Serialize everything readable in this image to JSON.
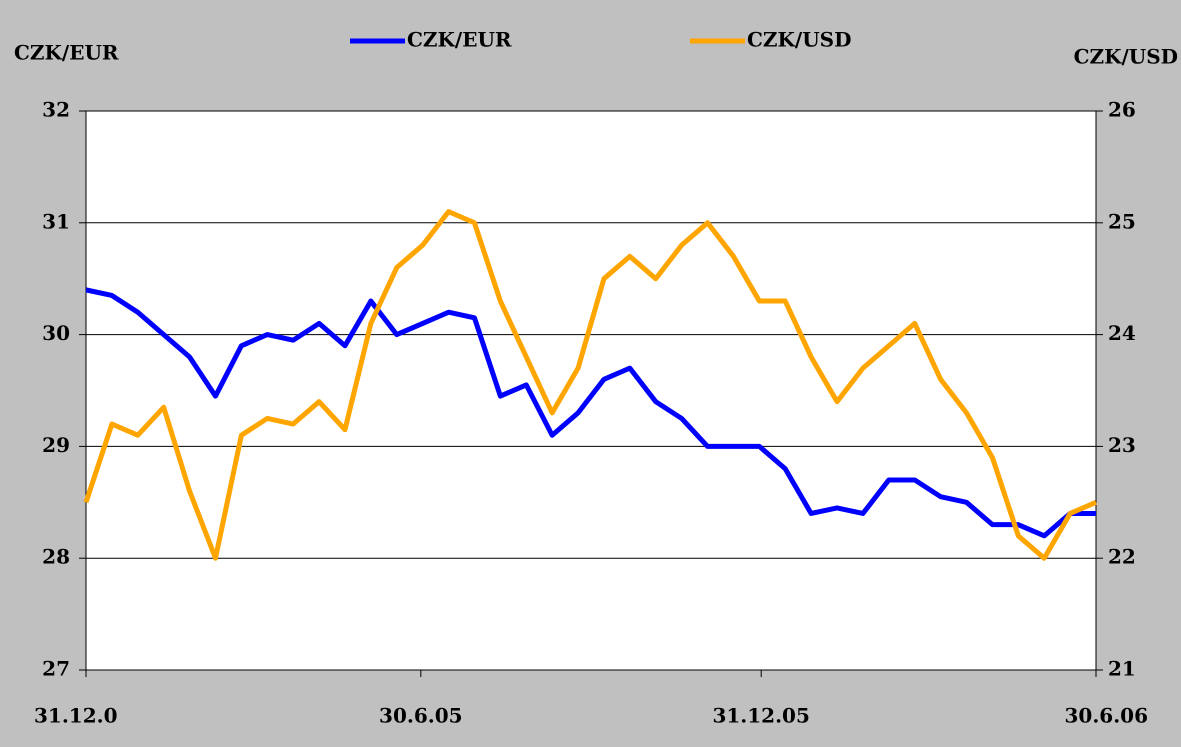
{
  "chart_data": {
    "type": "line",
    "y_label": "CZK/EUR",
    "y2_label": "CZK/USD",
    "x": [
      0,
      14,
      28,
      42,
      56,
      70,
      84,
      98,
      112,
      126,
      140,
      154,
      168,
      182,
      196,
      210,
      224,
      238,
      252,
      266,
      280,
      294,
      308,
      322,
      336,
      350,
      364,
      378,
      392,
      406,
      420,
      434,
      448,
      462,
      476,
      490,
      504,
      518,
      532,
      546
    ],
    "xlim": [
      0,
      546
    ],
    "xticks": [
      {
        "value": 0,
        "label": "31.12.0"
      },
      {
        "value": 181,
        "label": "30.6.05"
      },
      {
        "value": 365,
        "label": "31.12.05"
      },
      {
        "value": 546,
        "label": "30.6.06"
      }
    ],
    "ylim": [
      27,
      32
    ],
    "yticks": [
      27,
      28,
      29,
      30,
      31,
      32
    ],
    "y2lim": [
      21,
      26
    ],
    "y2ticks": [
      21,
      22,
      23,
      24,
      25,
      26
    ],
    "grid": true,
    "legend": "top",
    "series": [
      {
        "name": "CZK/EUR",
        "color": "#0000ff",
        "values": [
          30.4,
          30.35,
          30.2,
          30.0,
          29.8,
          29.45,
          29.9,
          30.0,
          29.95,
          30.1,
          29.9,
          30.3,
          30.0,
          30.1,
          30.2,
          30.15,
          29.45,
          29.55,
          29.1,
          29.3,
          29.6,
          29.7,
          29.4,
          29.25,
          29.0,
          29.0,
          29.0,
          28.8,
          28.4,
          28.45,
          28.4,
          28.7,
          28.7,
          28.55,
          28.5,
          28.3,
          28.3,
          28.2,
          28.4,
          28.4
        ]
      },
      {
        "name": "CZK/USD",
        "color": "#ffa500",
        "axis": "y2",
        "values": [
          22.5,
          23.2,
          23.1,
          23.35,
          22.6,
          22.0,
          23.1,
          23.25,
          23.2,
          23.4,
          23.15,
          24.1,
          24.6,
          24.8,
          25.1,
          25.0,
          24.3,
          23.8,
          23.3,
          23.7,
          24.5,
          24.7,
          24.5,
          24.8,
          25.0,
          24.7,
          24.3,
          24.3,
          23.8,
          23.4,
          23.7,
          23.9,
          24.1,
          23.6,
          23.3,
          22.9,
          22.2,
          22.0,
          22.4,
          22.5
        ]
      }
    ]
  }
}
